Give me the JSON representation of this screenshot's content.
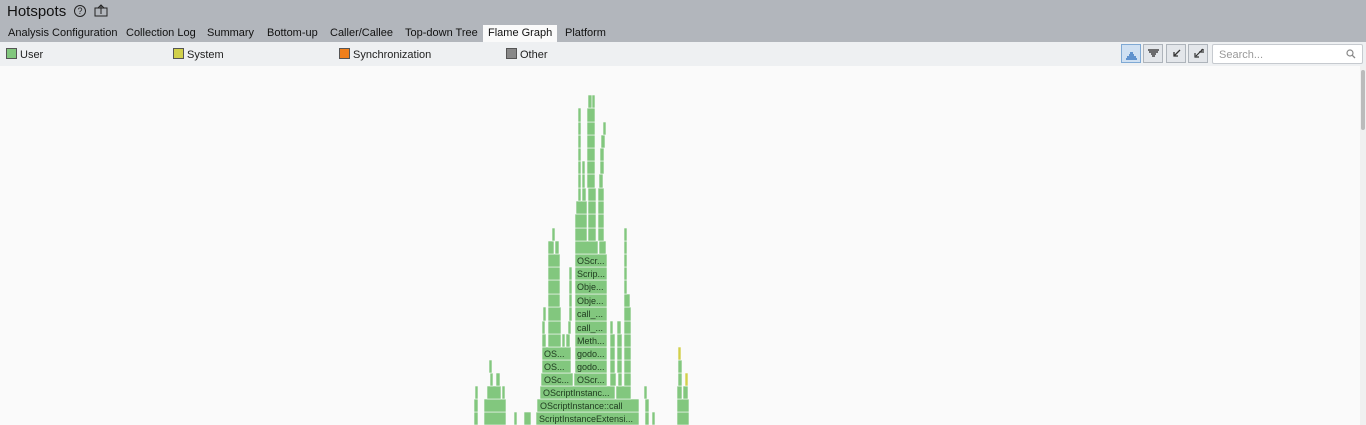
{
  "header": {
    "title": "Hotspots",
    "help_icon": "question-circle-icon",
    "export_icon": "export-icon"
  },
  "tabs": [
    {
      "label": "Analysis Configuration",
      "active": false
    },
    {
      "label": "Collection Log",
      "active": false
    },
    {
      "label": "Summary",
      "active": false
    },
    {
      "label": "Bottom-up",
      "active": false
    },
    {
      "label": "Caller/Callee",
      "active": false
    },
    {
      "label": "Top-down Tree",
      "active": false
    },
    {
      "label": "Flame Graph",
      "active": true
    },
    {
      "label": "Platform",
      "active": false
    }
  ],
  "legend": [
    {
      "label": "User",
      "color": "#82c77e"
    },
    {
      "label": "System",
      "color": "#d1d04a"
    },
    {
      "label": "Synchronization",
      "color": "#f07f1b"
    },
    {
      "label": "Other",
      "color": "#888888"
    }
  ],
  "toolbar": {
    "buttons": [
      "flame-mode-icon",
      "icicle-mode-icon",
      "collapse-icon",
      "expand-icon"
    ],
    "search_placeholder": "Search..."
  },
  "flame_labels": {
    "l1": "ScriptInstanceExtensi...",
    "l2": "OScriptInstance::call",
    "l3": "OScriptInstanc...",
    "l4a": "OSc...",
    "l4b": "OScr...",
    "l5a": "OS...",
    "l5b": "godo...",
    "l6a": "OS...",
    "l6b": "godo...",
    "l7": "Meth...",
    "l8": "call_...",
    "l9": "call_...",
    "l10": "Obje...",
    "l11": "Obje...",
    "l12": "Scrip...",
    "l13": "OScr..."
  }
}
